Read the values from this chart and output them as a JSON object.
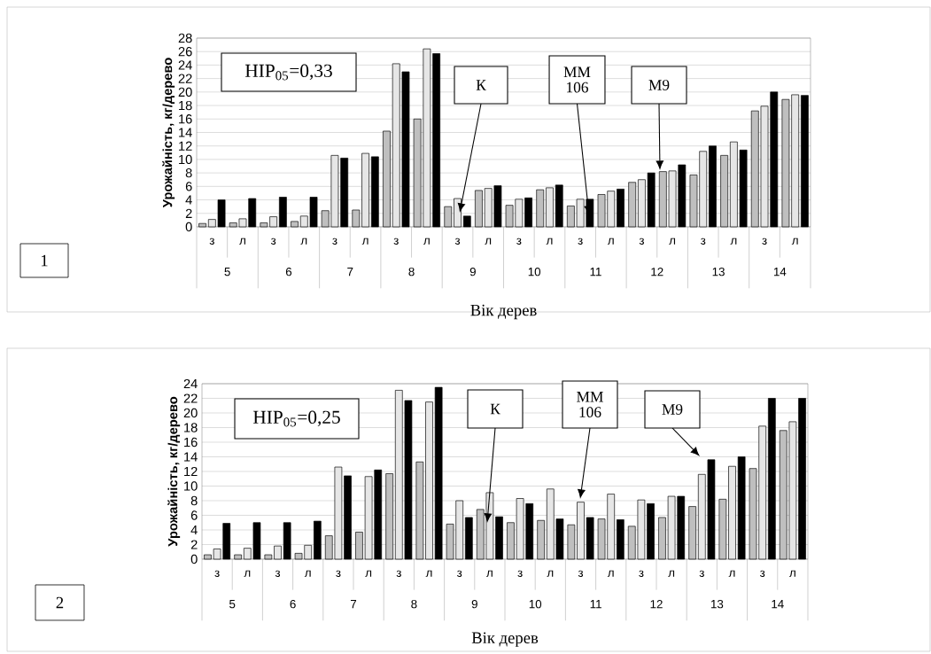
{
  "chart_data": [
    {
      "type": "bar",
      "ylabel": "Урожайність, кг/дерево",
      "xlabel": "Вік дерев",
      "grid": "y",
      "categories": [
        "з",
        "л",
        "з",
        "л",
        "з",
        "л",
        "з",
        "л",
        "з",
        "л",
        "з",
        "л",
        "з",
        "л",
        "з",
        "л",
        "з",
        "л",
        "з",
        "л"
      ],
      "ylim": [
        0,
        28
      ],
      "yticks": [
        0,
        2,
        4,
        6,
        8,
        10,
        12,
        14,
        16,
        18,
        20,
        22,
        24,
        26,
        28
      ],
      "series": [
        {
          "name": "К",
          "color": "#bfbfbf",
          "values": [
            0.5,
            0.6,
            0.6,
            0.8,
            2.4,
            2.5,
            14.2,
            16.0,
            3.0,
            5.4,
            3.2,
            5.5,
            3.1,
            4.8,
            6.6,
            8.2,
            7.7,
            10.6,
            17.2,
            18.9
          ]
        },
        {
          "name": "MM 106",
          "color": "#e6e6e6",
          "values": [
            1.1,
            1.2,
            1.5,
            1.6,
            10.6,
            10.9,
            24.2,
            26.4,
            4.2,
            5.7,
            4.1,
            5.8,
            4.1,
            5.3,
            7.0,
            8.3,
            11.2,
            12.6,
            17.9,
            19.6
          ]
        },
        {
          "name": "M9",
          "color": "#000000",
          "values": [
            4.0,
            4.2,
            4.4,
            4.4,
            10.2,
            10.4,
            23.0,
            25.7,
            1.6,
            6.1,
            4.3,
            6.2,
            4.1,
            5.6,
            8.0,
            9.2,
            12.0,
            11.4,
            20.0,
            19.5
          ]
        }
      ],
      "annotations": [
        "НІР$_{05}$=0,33",
        "1",
        "5",
        "6",
        "7",
        "8",
        "9",
        "10",
        "11",
        "12",
        "13",
        "14"
      ]
    },
    {
      "type": "bar",
      "ylabel": "Урожайність, кг/дерево",
      "xlabel": "Вік дерев",
      "grid": "y",
      "categories": [
        "з",
        "л",
        "з",
        "л",
        "з",
        "л",
        "з",
        "л",
        "з",
        "л",
        "з",
        "л",
        "з",
        "л",
        "з",
        "л",
        "з",
        "л",
        "з",
        "л"
      ],
      "ylim": [
        0,
        24
      ],
      "yticks": [
        0,
        2,
        4,
        6,
        8,
        10,
        12,
        14,
        16,
        18,
        20,
        22,
        24
      ],
      "series": [
        {
          "name": "К",
          "color": "#bfbfbf",
          "values": [
            0.6,
            0.6,
            0.6,
            0.8,
            3.2,
            3.7,
            11.7,
            13.3,
            4.8,
            6.8,
            5.0,
            5.3,
            4.7,
            5.5,
            4.5,
            5.7,
            7.2,
            8.2,
            12.4,
            17.6
          ]
        },
        {
          "name": "MM 106",
          "color": "#e6e6e6",
          "values": [
            1.4,
            1.5,
            1.8,
            1.9,
            12.6,
            11.3,
            23.1,
            21.5,
            8.0,
            9.1,
            8.3,
            9.6,
            7.8,
            8.9,
            8.1,
            8.6,
            11.6,
            12.7,
            18.2,
            18.8
          ]
        },
        {
          "name": "M9",
          "color": "#000000",
          "values": [
            4.9,
            5.0,
            5.0,
            5.2,
            11.4,
            12.2,
            21.7,
            23.5,
            5.7,
            5.8,
            7.6,
            5.5,
            5.7,
            5.4,
            7.6,
            8.6,
            13.6,
            14.0,
            22.0,
            22.0
          ]
        }
      ],
      "annotations": [
        "НІР$_{05}$=0,25",
        "2",
        "5",
        "6",
        "7",
        "8",
        "9",
        "10",
        "11",
        "12",
        "13",
        "14"
      ]
    }
  ]
}
